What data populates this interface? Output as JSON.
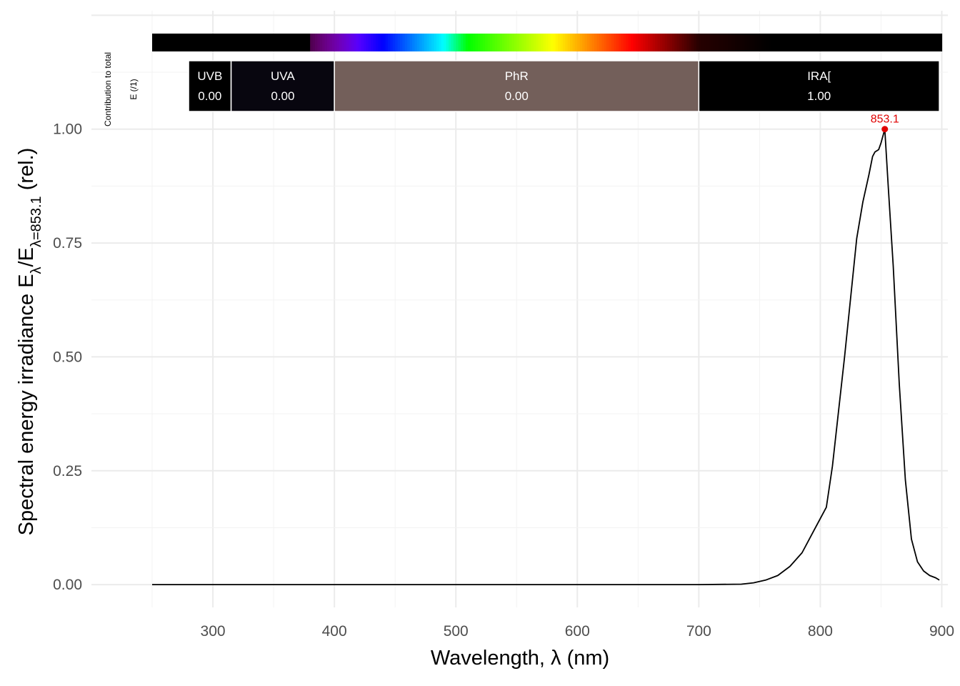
{
  "chart_data": {
    "type": "line",
    "title": "",
    "xlabel": "Wavelength, λ (nm)",
    "ylabel": {
      "main": "Spectral  energy  irradiance  E",
      "sub1": "λ",
      "slash": "/E",
      "sub2": "λ=853.1",
      "suffix": "  (rel.)"
    },
    "xlim": [
      200,
      905
    ],
    "ylim": [
      -0.05,
      1.26
    ],
    "x_ticks": [
      300,
      400,
      500,
      600,
      700,
      800,
      900
    ],
    "x_tick_labels": [
      "300",
      "400",
      "500",
      "600",
      "700",
      "800",
      "900"
    ],
    "y_ticks": [
      0,
      0.25,
      0.5,
      0.75,
      1.0
    ],
    "y_tick_labels": [
      "0.00",
      "0.25",
      "0.50",
      "0.75",
      "1.00"
    ],
    "grid": true,
    "line_color": "#000000",
    "series": [
      {
        "x": [
          250,
          700,
          735,
          745,
          755,
          765,
          775,
          785,
          795,
          805,
          810,
          815,
          820,
          825,
          830,
          835,
          840,
          843,
          845,
          848,
          850,
          853.1,
          856,
          860,
          865,
          870,
          875,
          880,
          885,
          890,
          895,
          898
        ],
        "y": [
          0,
          0,
          0.001,
          0.004,
          0.01,
          0.02,
          0.04,
          0.07,
          0.12,
          0.17,
          0.26,
          0.38,
          0.5,
          0.63,
          0.76,
          0.84,
          0.9,
          0.94,
          0.95,
          0.955,
          0.97,
          1.0,
          0.87,
          0.7,
          0.44,
          0.23,
          0.1,
          0.05,
          0.03,
          0.02,
          0.015,
          0.01
        ]
      }
    ],
    "peak": {
      "x": 853.1,
      "y": 1.0,
      "label": "853.1",
      "color": "#e00000"
    },
    "wavelength_color_bar": {
      "from": 250,
      "to": 900
    },
    "bands": [
      {
        "name": "UVB",
        "from": 280,
        "to": 315,
        "value": "0.00",
        "color": "#000000"
      },
      {
        "name": "UVA",
        "from": 315,
        "to": 400,
        "value": "0.00",
        "color": "#08060f"
      },
      {
        "name": "PhR",
        "from": 400,
        "to": 700,
        "value": "0.00",
        "color": "#735f5a"
      },
      {
        "name": "IRA[",
        "from": 700,
        "to": 898,
        "value": "1.00",
        "color": "#000000"
      }
    ],
    "band_side_label": [
      "Contribution  to  total",
      "E  (/1)"
    ]
  }
}
